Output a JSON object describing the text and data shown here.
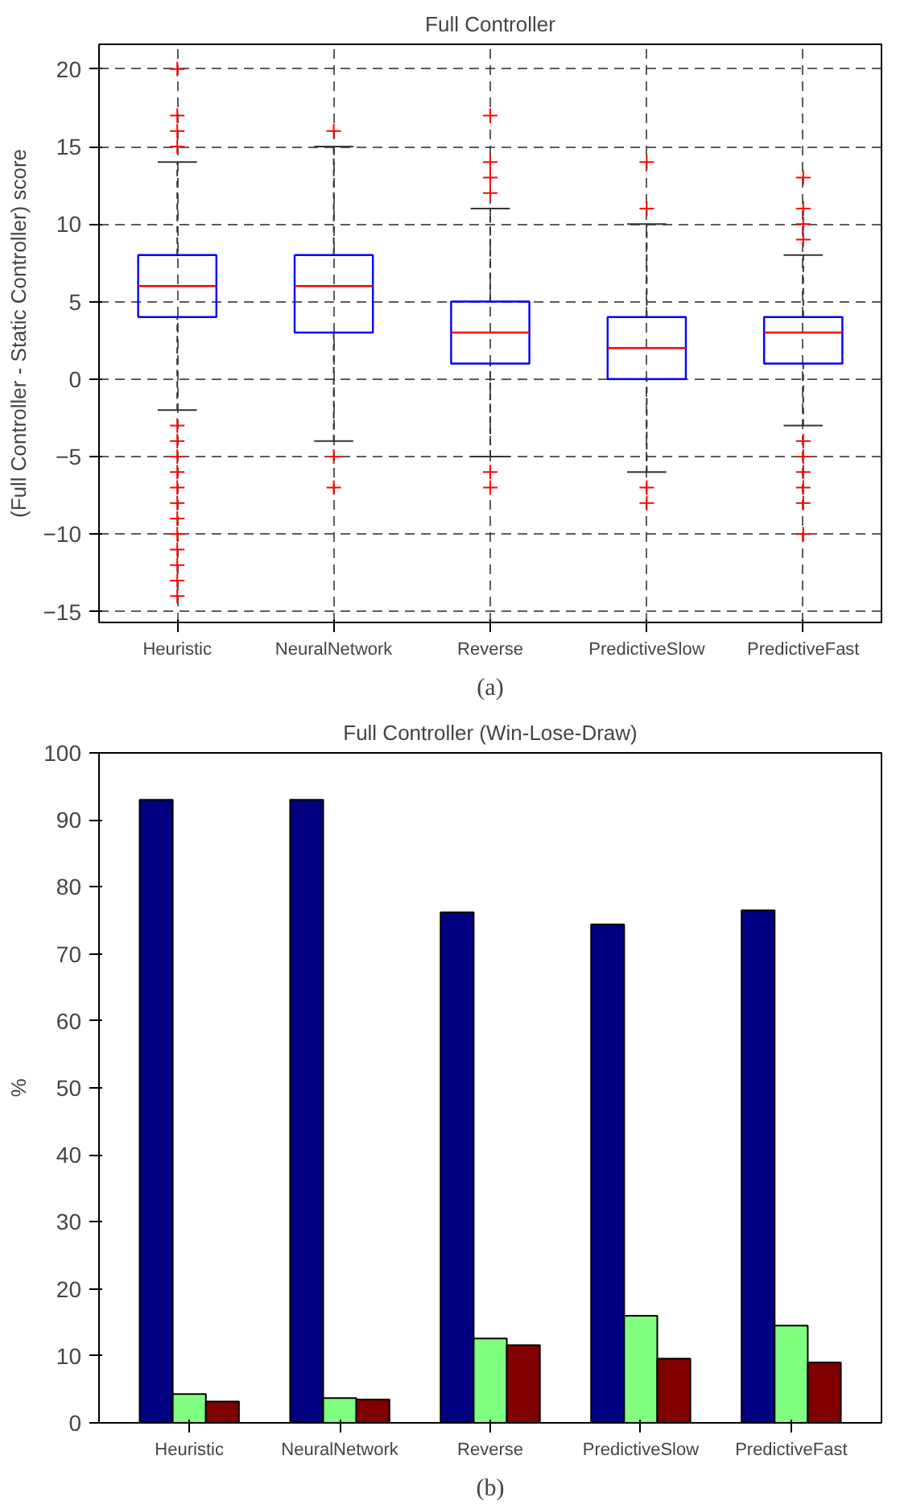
{
  "chart_data": [
    {
      "type": "box",
      "title": "Full Controller",
      "ylabel": "(Full Controller - Static Controller) score",
      "categories": [
        "Heuristic",
        "NeuralNetwork",
        "Reverse",
        "PredictiveSlow",
        "PredictiveFast"
      ],
      "boxes": [
        {
          "low": -2,
          "q1": 4,
          "median": 6,
          "q3": 8,
          "high": 14,
          "outliers": [
            20,
            17,
            16,
            15,
            -3,
            -4,
            -5,
            -6,
            -7,
            -8,
            -9,
            -10,
            -11,
            -12,
            -13,
            -14
          ]
        },
        {
          "low": -4,
          "q1": 3,
          "median": 6,
          "q3": 8,
          "high": 15,
          "outliers": [
            16,
            -5,
            -7
          ]
        },
        {
          "low": -5,
          "q1": 1,
          "median": 3,
          "q3": 5,
          "high": 11,
          "outliers": [
            17,
            14,
            13,
            12,
            -6,
            -7
          ]
        },
        {
          "low": -6,
          "q1": 0,
          "median": 2,
          "q3": 4,
          "high": 10,
          "outliers": [
            14,
            11,
            -7,
            -8
          ]
        },
        {
          "low": -3,
          "q1": 1,
          "median": 3,
          "q3": 4,
          "high": 8,
          "outliers": [
            13,
            11,
            10,
            9,
            -4,
            -5,
            -6,
            -7,
            -8,
            -10
          ]
        }
      ],
      "color": "#0000ff",
      "ylim": [
        -15.7,
        21.6
      ],
      "yticks": [
        -15,
        -10,
        -5,
        0,
        5,
        10,
        15,
        20
      ],
      "grid": true,
      "annotations": [
        "(a)"
      ]
    },
    {
      "type": "bar",
      "title": "Full Controller (Win-Lose-Draw)",
      "ylabel": "%",
      "categories": [
        "Heuristic",
        "NeuralNetwork",
        "Reverse",
        "PredictiveSlow",
        "PredictiveFast"
      ],
      "series": [
        {
          "color": "#000080",
          "values": [
            93,
            93,
            76.2,
            74.4,
            76.5
          ]
        },
        {
          "color": "#80ff80",
          "values": [
            4.3,
            3.7,
            12.6,
            16.0,
            14.5
          ]
        },
        {
          "color": "#800000",
          "values": [
            3.2,
            3.5,
            11.6,
            9.6,
            9.0
          ]
        }
      ],
      "ylim": [
        0,
        100
      ],
      "yticks": [
        0,
        10,
        20,
        30,
        40,
        50,
        60,
        70,
        80,
        90,
        100
      ],
      "annotations": [
        "(b)"
      ]
    }
  ]
}
